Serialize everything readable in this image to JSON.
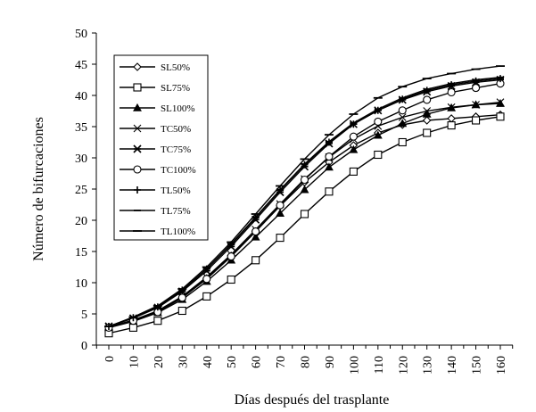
{
  "chart_data": {
    "type": "line",
    "title": "",
    "xlabel": "Días después del trasplante",
    "ylabel": "Número de bifurcaciones",
    "x": [
      0,
      10,
      20,
      30,
      40,
      50,
      60,
      70,
      80,
      90,
      100,
      110,
      120,
      130,
      140,
      150,
      160
    ],
    "xlim": [
      0,
      160
    ],
    "ylim": [
      0,
      50
    ],
    "xticks": [
      "0",
      "10",
      "20",
      "30",
      "40",
      "50",
      "60",
      "70",
      "80",
      "90",
      "100",
      "110",
      "120",
      "130",
      "140",
      "150",
      "160"
    ],
    "yticks": [
      "0",
      "5",
      "10",
      "15",
      "20",
      "25",
      "30",
      "35",
      "40",
      "45",
      "50"
    ],
    "grid": false,
    "legend_position": "top-left",
    "series": [
      {
        "name": "SL50%",
        "marker": "diamond",
        "values": [
          2.9,
          4.0,
          5.4,
          7.6,
          10.7,
          14.3,
          18.2,
          22.3,
          26.1,
          29.3,
          32.0,
          34.0,
          35.3,
          36.0,
          36.3,
          36.6,
          36.9
        ]
      },
      {
        "name": "SL75%",
        "marker": "square",
        "values": [
          1.9,
          2.8,
          3.9,
          5.5,
          7.8,
          10.5,
          13.6,
          17.2,
          21.0,
          24.6,
          27.8,
          30.5,
          32.5,
          34.0,
          35.2,
          36.0,
          36.6
        ]
      },
      {
        "name": "SL100%",
        "marker": "triangle",
        "values": [
          2.8,
          3.8,
          5.2,
          7.3,
          10.2,
          13.6,
          17.3,
          21.1,
          24.9,
          28.5,
          31.3,
          33.6,
          35.5,
          37.0,
          38.0,
          38.5,
          38.7
        ]
      },
      {
        "name": "TC50%",
        "marker": "x",
        "values": [
          2.9,
          4.0,
          5.5,
          7.8,
          10.9,
          14.5,
          18.5,
          22.6,
          26.6,
          30.1,
          33.0,
          35.1,
          36.5,
          37.5,
          38.1,
          38.5,
          38.9
        ]
      },
      {
        "name": "TC75%",
        "marker": "asterisk",
        "values": [
          3.0,
          4.3,
          6.0,
          8.6,
          11.9,
          15.8,
          20.1,
          24.5,
          28.6,
          32.3,
          35.4,
          37.6,
          39.3,
          40.6,
          41.5,
          42.1,
          42.5
        ]
      },
      {
        "name": "TC100%",
        "marker": "circle",
        "values": [
          2.8,
          3.9,
          5.3,
          7.6,
          10.6,
          14.2,
          18.2,
          22.4,
          26.5,
          30.2,
          33.4,
          35.8,
          37.6,
          39.3,
          40.5,
          41.2,
          41.9
        ]
      },
      {
        "name": "TL50%",
        "marker": "plus",
        "values": [
          3.0,
          4.4,
          6.1,
          8.8,
          12.2,
          16.1,
          20.4,
          24.8,
          28.9,
          32.5,
          35.4,
          37.6,
          39.4,
          40.8,
          41.7,
          42.3,
          42.7
        ]
      },
      {
        "name": "TL75%",
        "marker": "dash",
        "values": [
          3.0,
          4.4,
          6.1,
          8.8,
          12.2,
          16.2,
          20.5,
          24.9,
          29.0,
          32.6,
          35.6,
          37.8,
          39.6,
          41.0,
          41.9,
          42.5,
          42.9
        ]
      },
      {
        "name": "TL100%",
        "marker": "longdash",
        "values": [
          3.0,
          4.5,
          6.3,
          9.0,
          12.5,
          16.5,
          21.0,
          25.5,
          29.8,
          33.7,
          37.0,
          39.6,
          41.4,
          42.7,
          43.5,
          44.2,
          44.7
        ]
      }
    ]
  }
}
